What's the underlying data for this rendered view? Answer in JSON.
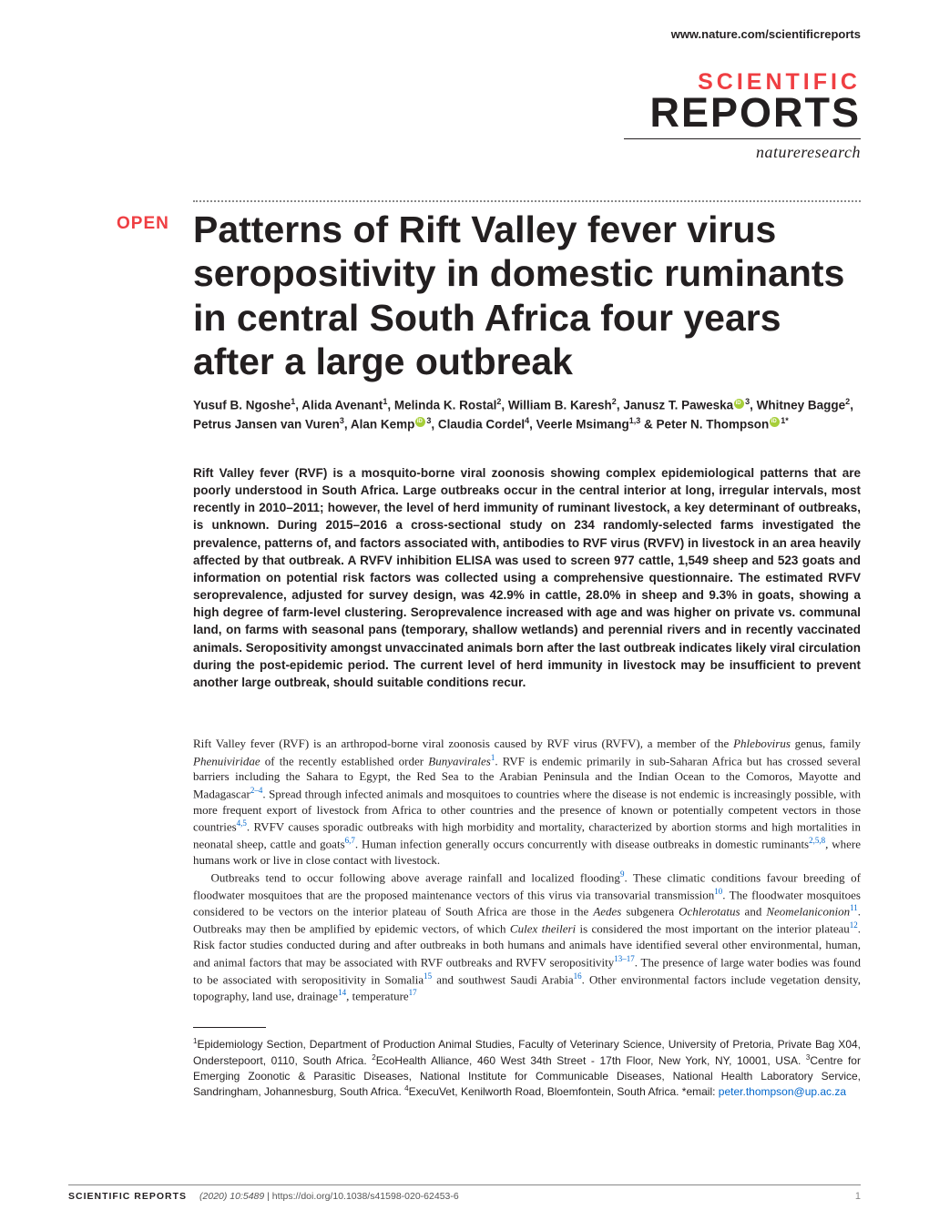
{
  "header": {
    "url": "www.nature.com/scientificreports",
    "logo_line1": "SCIENTIFIC",
    "logo_line2": "REPORTS",
    "publisher": "natureresearch",
    "open_badge": "OPEN"
  },
  "title": "Patterns of Rift Valley fever virus seropositivity in domestic ruminants in central South Africa four years after a large outbreak",
  "authors_html": "Yusuf B. Ngoshe<sup>1</sup>, Alida Avenant<sup>1</sup>, Melinda K. Rostal<sup>2</sup>, William B. Karesh<sup>2</sup>, Janusz T. Paweska<span class='orcid'></span><sup>3</sup>, Whitney Bagge<sup>2</sup>, Petrus Jansen van Vuren<sup>3</sup>, Alan Kemp<span class='orcid'></span><sup>3</sup>, Claudia Cordel<sup>4</sup>, Veerle Msimang<sup>1,3</sup> & Peter N. Thompson<span class='orcid'></span><sup>1*</sup>",
  "abstract": "Rift Valley fever (RVF) is a mosquito-borne viral zoonosis showing complex epidemiological patterns that are poorly understood in South Africa. Large outbreaks occur in the central interior at long, irregular intervals, most recently in 2010–2011; however, the level of herd immunity of ruminant livestock, a key determinant of outbreaks, is unknown. During 2015–2016 a cross-sectional study on 234 randomly-selected farms investigated the prevalence, patterns of, and factors associated with, antibodies to RVF virus (RVFV) in livestock in an area heavily affected by that outbreak. A RVFV inhibition ELISA was used to screen 977 cattle, 1,549 sheep and 523 goats and information on potential risk factors was collected using a comprehensive questionnaire. The estimated RVFV seroprevalence, adjusted for survey design, was 42.9% in cattle, 28.0% in sheep and 9.3% in goats, showing a high degree of farm-level clustering. Seroprevalence increased with age and was higher on private vs. communal land, on farms with seasonal pans (temporary, shallow wetlands) and perennial rivers and in recently vaccinated animals. Seropositivity amongst unvaccinated animals born after the last outbreak indicates likely viral circulation during the post-epidemic period. The current level of herd immunity in livestock may be insufficient to prevent another large outbreak, should suitable conditions recur.",
  "body": {
    "p1_html": "Rift Valley fever (RVF) is an arthropod-borne viral zoonosis caused by RVF virus (RVFV), a member of the <em>Phlebovirus</em> genus, family <em>Phenuiviridae</em> of the recently established order <em>Bunyavirales</em><span class='cite'>1</span>. RVF is endemic primarily in sub-Saharan Africa but has crossed several barriers including the Sahara to Egypt, the Red Sea to the Arabian Peninsula and the Indian Ocean to the Comoros, Mayotte and Madagascar<span class='cite'>2–4</span>. Spread through infected animals and mosquitoes to countries where the disease is not endemic is increasingly possible, with more frequent export of livestock from Africa to other countries and the presence of known or potentially competent vectors in those countries<span class='cite'>4,5</span>. RVFV causes sporadic outbreaks with high morbidity and mortality, characterized by abortion storms and high mortalities in neonatal sheep, cattle and goats<span class='cite'>6,7</span>. Human infection generally occurs concurrently with disease outbreaks in domestic ruminants<span class='cite'>2,5,8</span>, where humans work or live in close contact with livestock.",
    "p2_html": "Outbreaks tend to occur following above average rainfall and localized flooding<span class='cite'>9</span>. These climatic conditions favour breeding of floodwater mosquitoes that are the proposed maintenance vectors of this virus via transovarial transmission<span class='cite'>10</span>. The floodwater mosquitoes considered to be vectors on the interior plateau of South Africa are those in the <em>Aedes</em> subgenera <em>Ochlerotatus</em> and <em>Neomelaniconion</em><span class='cite'>11</span>. Outbreaks may then be amplified by epidemic vectors, of which <em>Culex theileri</em> is considered the most important on the interior plateau<span class='cite'>12</span>. Risk factor studies conducted during and after outbreaks in both humans and animals have identified several other environmental, human, and animal factors that may be associated with RVF outbreaks and RVFV seropositivity<span class='cite'>13–17</span>. The presence of large water bodies was found to be associated with seropositivity in Somalia<span class='cite'>15</span> and southwest Saudi Arabia<span class='cite'>16</span>. Other environmental factors include vegetation density, topography, land use, drainage<span class='cite'>14</span>, temperature<span class='cite'>17</span>"
  },
  "affiliations_html": "<sup>1</sup>Epidemiology Section, Department of Production Animal Studies, Faculty of Veterinary Science, University of Pretoria, Private Bag X04, Onderstepoort, 0110, South Africa. <sup>2</sup>EcoHealth Alliance, 460 West 34th Street - 17th Floor, New York, NY, 10001, USA. <sup>3</sup>Centre for Emerging Zoonotic & Parasitic Diseases, National Institute for Communicable Diseases, National Health Laboratory Service, Sandringham, Johannesburg, South Africa. <sup>4</sup>ExecuVet, Kenilworth Road, Bloemfontein, South Africa. *email: <span class='email-link'>peter.thompson@up.ac.za</span>",
  "footer": {
    "journal": "SCIENTIFIC REPORTS",
    "citation_html": "<em>(2020) 10:5489</em> | https://doi.org/10.1038/s41598-020-62453-6",
    "page": "1"
  },
  "colors": {
    "accent_red": "#ef3e42",
    "link_blue": "#0066cc",
    "orcid_green": "#a6ce39",
    "text": "#231f20",
    "background": "#ffffff"
  }
}
